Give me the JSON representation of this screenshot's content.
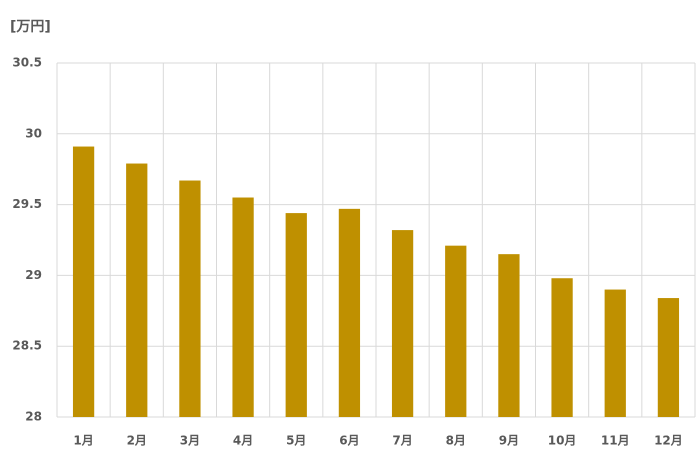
{
  "chart_data": {
    "type": "bar",
    "unit_label": "[万円]",
    "categories": [
      "1月",
      "2月",
      "3月",
      "4月",
      "5月",
      "6月",
      "7月",
      "8月",
      "9月",
      "10月",
      "11月",
      "12月"
    ],
    "values": [
      29.91,
      29.79,
      29.67,
      29.55,
      29.44,
      29.47,
      29.32,
      29.21,
      29.15,
      28.98,
      28.9,
      28.84
    ],
    "color": "#bf9000",
    "ylim": [
      28,
      30.5
    ],
    "yticks": [
      28,
      28.5,
      29,
      29.5,
      30,
      30.5
    ],
    "grid": true
  }
}
